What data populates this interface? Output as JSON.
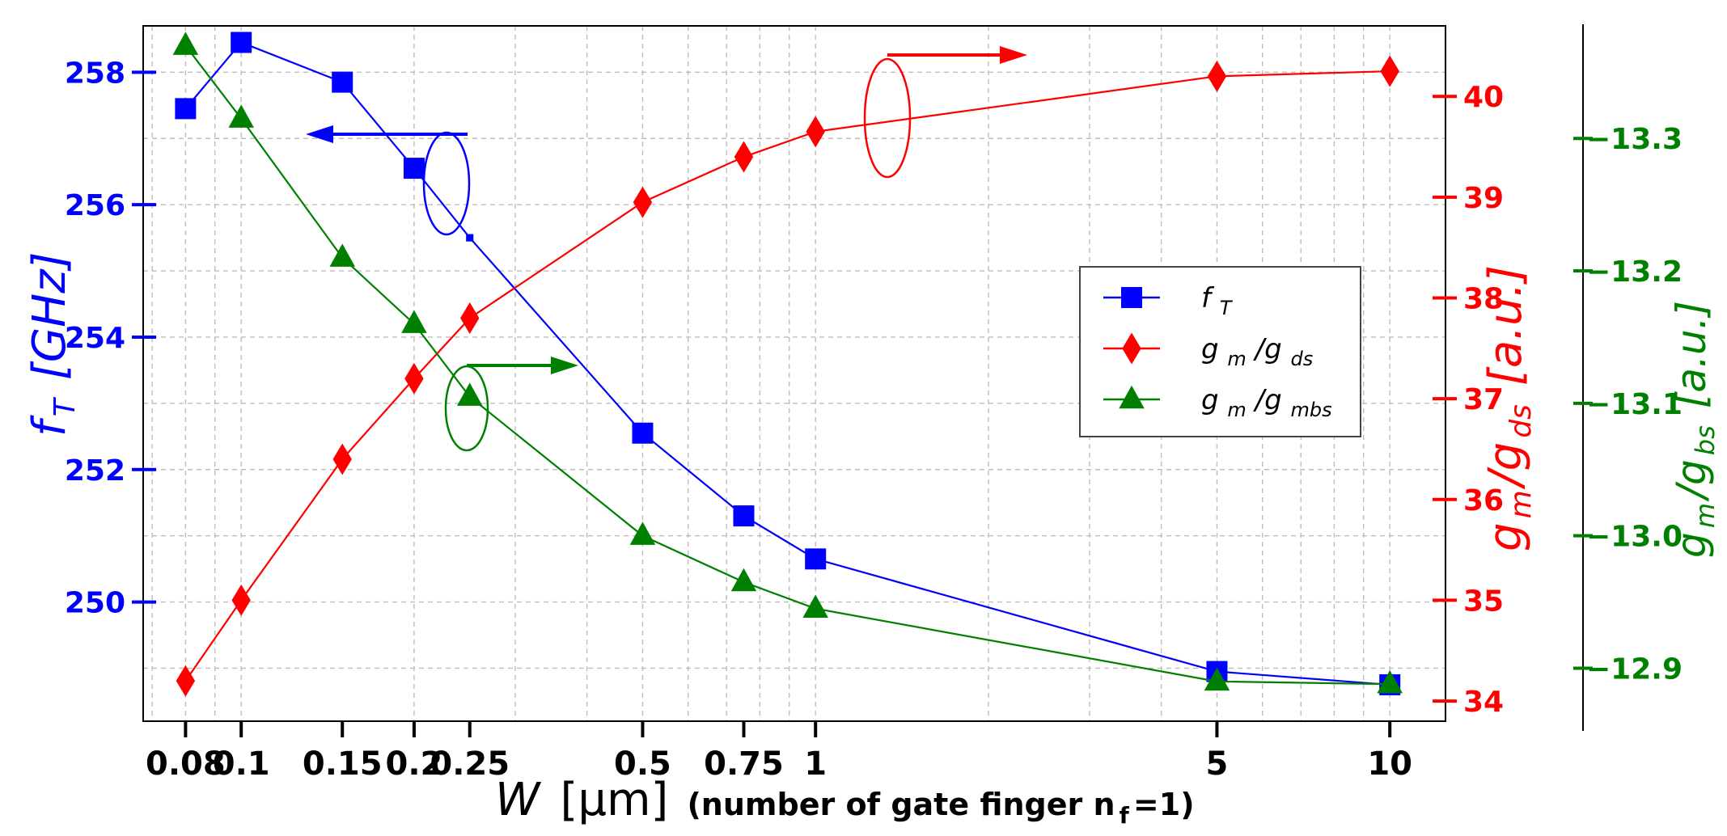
{
  "chart_data": {
    "type": "line",
    "x_scale": "log",
    "xlim": [
      0.0675,
      12.5
    ],
    "x_ticks": [
      0.08,
      0.1,
      0.15,
      0.2,
      0.25,
      0.5,
      0.75,
      1,
      5,
      10
    ],
    "x_tick_labels": [
      "0.08",
      "0.1",
      "0.15",
      "0.2",
      "0.25",
      "0.5",
      "0.75",
      "1",
      "5",
      "10"
    ],
    "xlabel_var": "W",
    "xlabel_unit": "[μm]",
    "xlabel_note_prefix": "(number of gate finger  n",
    "xlabel_note_sub": "f",
    "xlabel_note_suffix": "=1)",
    "grid": true,
    "axes": {
      "left": {
        "label_main": "f",
        "label_sub": "T",
        "label_unit": "[GHz]",
        "color": "#0000ff",
        "ylim": [
          248.2,
          258.7
        ],
        "ticks": [
          250,
          252,
          254,
          256,
          258
        ],
        "tick_labels": [
          "250",
          "252",
          "254",
          "256",
          "258"
        ]
      },
      "right": {
        "label_main": "g",
        "label_sub1": "m",
        "label_mid": "/g",
        "label_sub2": "ds",
        "label_unit": "[a.u.]",
        "color": "#ff0000",
        "ylim": [
          33.8,
          40.7
        ],
        "ticks": [
          34,
          35,
          36,
          37,
          38,
          39,
          40
        ],
        "tick_labels": [
          "34",
          "35",
          "36",
          "37",
          "38",
          "39",
          "40"
        ]
      },
      "right2": {
        "label_main": "g",
        "label_sub1": "m",
        "label_mid": "/g",
        "label_sub2": "bs",
        "label_unit": "[a.u.]",
        "color": "#008000",
        "ylim": [
          12.86,
          13.385
        ],
        "ticks": [
          12.9,
          13.0,
          13.1,
          13.2,
          13.3
        ],
        "tick_labels": [
          "−12.9",
          "−13.0",
          "−13.1",
          "−13.2",
          "−13.3"
        ]
      }
    },
    "series": [
      {
        "name_main": "f",
        "name_sub": "T",
        "axis": "left",
        "color": "#0000ff",
        "marker": "square",
        "x": [
          0.08,
          0.1,
          0.15,
          0.2,
          0.25,
          0.5,
          0.75,
          1,
          5,
          10
        ],
        "y": [
          257.45,
          258.45,
          257.85,
          256.55,
          255.5,
          252.55,
          251.3,
          250.65,
          248.95,
          248.75
        ],
        "marker_sizes": [
          1,
          1,
          1,
          1,
          0.35,
          1,
          1,
          1,
          1,
          1
        ]
      },
      {
        "name_main": "g",
        "name_sub1": "m",
        "name_mid": "/g",
        "name_sub2": "ds",
        "axis": "right",
        "color": "#ff0000",
        "marker": "diamond",
        "x": [
          0.08,
          0.1,
          0.15,
          0.2,
          0.25,
          0.5,
          0.75,
          1,
          5,
          10
        ],
        "y": [
          34.2,
          35.0,
          36.4,
          37.2,
          37.8,
          38.95,
          39.4,
          39.65,
          40.2,
          40.25
        ]
      },
      {
        "name_main": "g",
        "name_sub1": "m",
        "name_mid": "/g",
        "name_sub2": "mbs",
        "axis": "right2",
        "color": "#008000",
        "marker": "triangle",
        "x": [
          0.08,
          0.1,
          0.15,
          0.2,
          0.25,
          0.5,
          0.75,
          1,
          5,
          10
        ],
        "y": [
          13.37,
          13.315,
          13.21,
          13.16,
          13.105,
          13.0,
          12.965,
          12.945,
          12.89,
          12.888
        ]
      }
    ],
    "legend_position": "center-right"
  }
}
